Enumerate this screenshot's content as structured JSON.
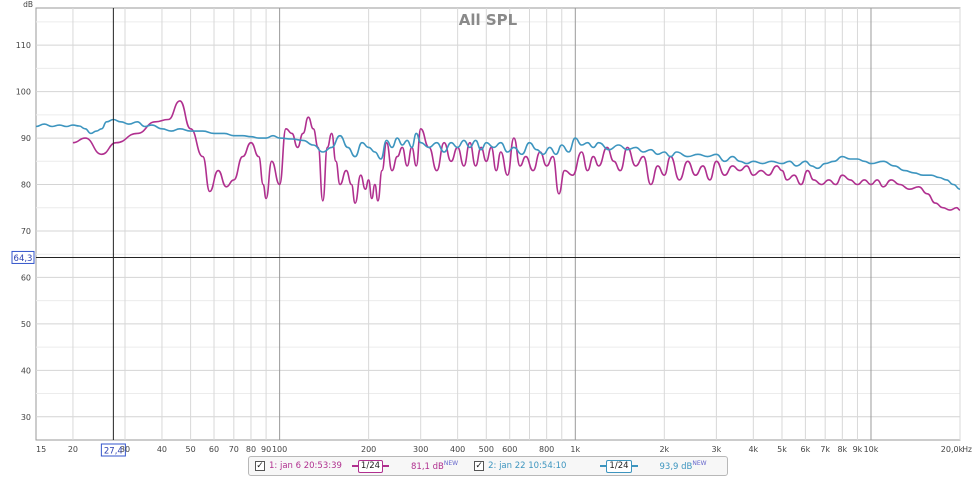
{
  "chart_data": {
    "type": "line",
    "title": "All SPL",
    "ylabel": "dB",
    "xunit": "Hz",
    "xscale": "log",
    "xlim": [
      15,
      20000
    ],
    "ylim": [
      25,
      118
    ],
    "grid": true,
    "yticks": [
      30,
      40,
      50,
      60,
      70,
      80,
      90,
      100,
      110
    ],
    "xticks": [
      {
        "v": 15,
        "label": "15"
      },
      {
        "v": 20,
        "label": "20"
      },
      {
        "v": 30,
        "label": "30"
      },
      {
        "v": 40,
        "label": "40"
      },
      {
        "v": 50,
        "label": "50"
      },
      {
        "v": 60,
        "label": "60"
      },
      {
        "v": 70,
        "label": "70"
      },
      {
        "v": 80,
        "label": "80"
      },
      {
        "v": 90,
        "label": "90"
      },
      {
        "v": 100,
        "label": "100"
      },
      {
        "v": 200,
        "label": "200"
      },
      {
        "v": 300,
        "label": "300"
      },
      {
        "v": 400,
        "label": "400"
      },
      {
        "v": 500,
        "label": "500"
      },
      {
        "v": 600,
        "label": "600"
      },
      {
        "v": 800,
        "label": "800"
      },
      {
        "v": 1000,
        "label": "1k"
      },
      {
        "v": 2000,
        "label": "2k"
      },
      {
        "v": 3000,
        "label": "3k"
      },
      {
        "v": 4000,
        "label": "4k"
      },
      {
        "v": 5000,
        "label": "5k"
      },
      {
        "v": 6000,
        "label": "6k"
      },
      {
        "v": 7000,
        "label": "7k"
      },
      {
        "v": 8000,
        "label": "8k"
      },
      {
        "v": 9000,
        "label": "9k"
      },
      {
        "v": 10000,
        "label": "10k"
      },
      {
        "v": 20000,
        "label": "20,0k"
      }
    ],
    "cursor": {
      "x": 27.4,
      "y": 64.3,
      "x_label": "27,4",
      "y_label": "64,3"
    },
    "series": [
      {
        "name": "1: jan 6 20:53:39",
        "color": "#b0308f",
        "points": [
          [
            20,
            89
          ],
          [
            22,
            90
          ],
          [
            25,
            86.5
          ],
          [
            28,
            89
          ],
          [
            33,
            91
          ],
          [
            38,
            93.5
          ],
          [
            42,
            94
          ],
          [
            46,
            98
          ],
          [
            50,
            92
          ],
          [
            55,
            86
          ],
          [
            58,
            78.5
          ],
          [
            62,
            83
          ],
          [
            66,
            79.5
          ],
          [
            70,
            81
          ],
          [
            75,
            86
          ],
          [
            80,
            89
          ],
          [
            85,
            86
          ],
          [
            88,
            80
          ],
          [
            90,
            77
          ],
          [
            94,
            85
          ],
          [
            100,
            80
          ],
          [
            105,
            92
          ],
          [
            110,
            91
          ],
          [
            115,
            88
          ],
          [
            120,
            91
          ],
          [
            125,
            94.5
          ],
          [
            130,
            92
          ],
          [
            135,
            88
          ],
          [
            140,
            76.5
          ],
          [
            145,
            88
          ],
          [
            150,
            91
          ],
          [
            155,
            85
          ],
          [
            160,
            80
          ],
          [
            168,
            83
          ],
          [
            175,
            80
          ],
          [
            180,
            76
          ],
          [
            188,
            82
          ],
          [
            195,
            79
          ],
          [
            200,
            81
          ],
          [
            205,
            77
          ],
          [
            210,
            80
          ],
          [
            215,
            76.5
          ],
          [
            222,
            83
          ],
          [
            230,
            89
          ],
          [
            240,
            83
          ],
          [
            250,
            86
          ],
          [
            260,
            88
          ],
          [
            270,
            84
          ],
          [
            280,
            88
          ],
          [
            290,
            84
          ],
          [
            300,
            92
          ],
          [
            320,
            88
          ],
          [
            340,
            83
          ],
          [
            360,
            89
          ],
          [
            380,
            85
          ],
          [
            400,
            88
          ],
          [
            420,
            84
          ],
          [
            440,
            89
          ],
          [
            460,
            84
          ],
          [
            480,
            88
          ],
          [
            500,
            85
          ],
          [
            520,
            88
          ],
          [
            540,
            83
          ],
          [
            560,
            87
          ],
          [
            590,
            82
          ],
          [
            620,
            90
          ],
          [
            650,
            84
          ],
          [
            680,
            86
          ],
          [
            720,
            83
          ],
          [
            760,
            87
          ],
          [
            800,
            84
          ],
          [
            840,
            86
          ],
          [
            880,
            78
          ],
          [
            920,
            83
          ],
          [
            980,
            82
          ],
          [
            1050,
            87
          ],
          [
            1100,
            83
          ],
          [
            1150,
            86
          ],
          [
            1200,
            84
          ],
          [
            1280,
            88
          ],
          [
            1350,
            85
          ],
          [
            1420,
            83
          ],
          [
            1500,
            88
          ],
          [
            1600,
            84
          ],
          [
            1700,
            86
          ],
          [
            1800,
            80
          ],
          [
            1900,
            84
          ],
          [
            2000,
            82
          ],
          [
            2100,
            86
          ],
          [
            2250,
            81
          ],
          [
            2400,
            85
          ],
          [
            2550,
            82
          ],
          [
            2700,
            84
          ],
          [
            2850,
            81
          ],
          [
            3000,
            85
          ],
          [
            3200,
            82
          ],
          [
            3400,
            84
          ],
          [
            3600,
            83
          ],
          [
            3800,
            84
          ],
          [
            4000,
            82
          ],
          [
            4250,
            83
          ],
          [
            4500,
            82
          ],
          [
            4800,
            84
          ],
          [
            5000,
            83
          ],
          [
            5200,
            81
          ],
          [
            5500,
            82
          ],
          [
            5800,
            80
          ],
          [
            6100,
            83
          ],
          [
            6400,
            81
          ],
          [
            6800,
            80
          ],
          [
            7200,
            81
          ],
          [
            7600,
            80
          ],
          [
            8000,
            82
          ],
          [
            8500,
            81
          ],
          [
            9000,
            80
          ],
          [
            9500,
            81
          ],
          [
            10000,
            80
          ],
          [
            10500,
            81
          ],
          [
            11000,
            79.5
          ],
          [
            11700,
            81
          ],
          [
            12500,
            80
          ],
          [
            13500,
            79
          ],
          [
            14500,
            79.5
          ],
          [
            15500,
            78
          ],
          [
            16500,
            76
          ],
          [
            17500,
            75
          ],
          [
            18500,
            74.5
          ],
          [
            19500,
            75
          ],
          [
            20000,
            74.5
          ]
        ]
      },
      {
        "name": "2: jan 22 10:54:10",
        "color": "#3d95bf",
        "points": [
          [
            15,
            92.5
          ],
          [
            16,
            93
          ],
          [
            17,
            92.5
          ],
          [
            18,
            92.8
          ],
          [
            19,
            92.5
          ],
          [
            20,
            92.8
          ],
          [
            21,
            92.6
          ],
          [
            22,
            92
          ],
          [
            23,
            91
          ],
          [
            24,
            91.5
          ],
          [
            25,
            92
          ],
          [
            26,
            93.5
          ],
          [
            27.4,
            94
          ],
          [
            29,
            93.5
          ],
          [
            31,
            93
          ],
          [
            33,
            93.5
          ],
          [
            35,
            92.5
          ],
          [
            37,
            92.8
          ],
          [
            40,
            92
          ],
          [
            43,
            91.5
          ],
          [
            46,
            92
          ],
          [
            50,
            91.5
          ],
          [
            55,
            91.5
          ],
          [
            60,
            91
          ],
          [
            65,
            91
          ],
          [
            70,
            90.5
          ],
          [
            75,
            90.5
          ],
          [
            80,
            90.3
          ],
          [
            85,
            90
          ],
          [
            90,
            90
          ],
          [
            95,
            90.5
          ],
          [
            100,
            90
          ],
          [
            110,
            89.8
          ],
          [
            120,
            89.5
          ],
          [
            130,
            88.5
          ],
          [
            140,
            87
          ],
          [
            150,
            88
          ],
          [
            160,
            90.5
          ],
          [
            170,
            88
          ],
          [
            180,
            86
          ],
          [
            190,
            89
          ],
          [
            200,
            88
          ],
          [
            210,
            87
          ],
          [
            220,
            85.5
          ],
          [
            230,
            89.5
          ],
          [
            240,
            88
          ],
          [
            250,
            90
          ],
          [
            260,
            88.5
          ],
          [
            270,
            89.5
          ],
          [
            280,
            88
          ],
          [
            290,
            91
          ],
          [
            300,
            89
          ],
          [
            320,
            88
          ],
          [
            340,
            89
          ],
          [
            360,
            87
          ],
          [
            380,
            89
          ],
          [
            400,
            88
          ],
          [
            420,
            89.5
          ],
          [
            440,
            88
          ],
          [
            460,
            89.5
          ],
          [
            480,
            87.5
          ],
          [
            500,
            89
          ],
          [
            530,
            88
          ],
          [
            560,
            89
          ],
          [
            590,
            87
          ],
          [
            620,
            88
          ],
          [
            660,
            86.5
          ],
          [
            700,
            89
          ],
          [
            740,
            87.5
          ],
          [
            780,
            86.5
          ],
          [
            820,
            88
          ],
          [
            860,
            86.5
          ],
          [
            900,
            88.5
          ],
          [
            950,
            87
          ],
          [
            1000,
            90
          ],
          [
            1050,
            88.5
          ],
          [
            1100,
            89
          ],
          [
            1150,
            88
          ],
          [
            1200,
            89
          ],
          [
            1300,
            87.5
          ],
          [
            1400,
            88.5
          ],
          [
            1500,
            87.5
          ],
          [
            1600,
            88
          ],
          [
            1700,
            87
          ],
          [
            1800,
            87.5
          ],
          [
            1900,
            86.5
          ],
          [
            2000,
            87
          ],
          [
            2100,
            86
          ],
          [
            2200,
            87
          ],
          [
            2400,
            86
          ],
          [
            2600,
            86.5
          ],
          [
            2800,
            86
          ],
          [
            3000,
            86.5
          ],
          [
            3200,
            85
          ],
          [
            3400,
            86
          ],
          [
            3600,
            85
          ],
          [
            3800,
            84.5
          ],
          [
            4000,
            85
          ],
          [
            4300,
            84.5
          ],
          [
            4600,
            85
          ],
          [
            5000,
            84.5
          ],
          [
            5300,
            85
          ],
          [
            5600,
            84
          ],
          [
            6000,
            85
          ],
          [
            6300,
            84
          ],
          [
            6600,
            83.5
          ],
          [
            7000,
            84.5
          ],
          [
            7500,
            85
          ],
          [
            8000,
            86
          ],
          [
            8500,
            85.5
          ],
          [
            9000,
            85.5
          ],
          [
            9500,
            85
          ],
          [
            10000,
            84.5
          ],
          [
            11000,
            85
          ],
          [
            12000,
            84
          ],
          [
            13000,
            83
          ],
          [
            14000,
            82.5
          ],
          [
            15000,
            82
          ],
          [
            16000,
            82
          ],
          [
            17000,
            81.5
          ],
          [
            18000,
            81
          ],
          [
            19000,
            80
          ],
          [
            20000,
            79
          ]
        ]
      }
    ]
  },
  "legend": {
    "items": [
      {
        "check": "✓",
        "label": "1: jan 6 20:53:39",
        "smoothing": "1/24",
        "value": "81,1 dB",
        "tag": "NEW",
        "color": "#b0308f"
      },
      {
        "check": "✓",
        "label": "2: jan 22 10:54:10",
        "smoothing": "1/24",
        "value": "93,9 dB",
        "tag": "NEW",
        "color": "#3d95bf"
      }
    ]
  }
}
